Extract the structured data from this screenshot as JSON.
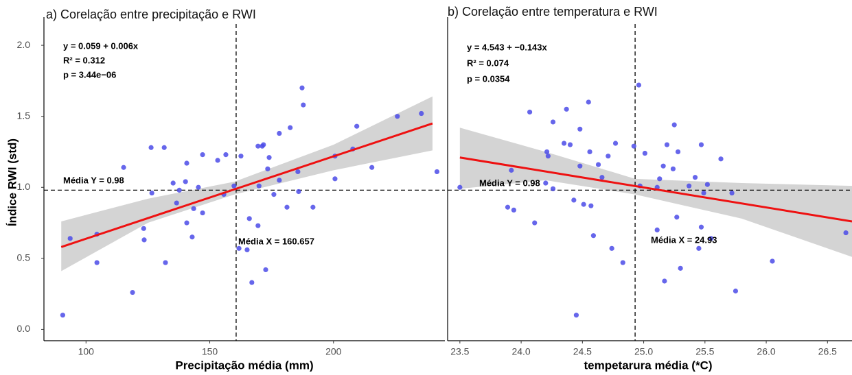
{
  "chart_data": [
    {
      "type": "scatter",
      "title": "a) Corelação entre precipitação e RWI",
      "xlabel": "Precipitação média (mm)",
      "ylabel": "Índice RWI (std)",
      "xlim": [
        83,
        245
      ],
      "ylim": [
        -0.08,
        2.15
      ],
      "xticks": [
        100,
        150,
        200
      ],
      "yticks": [
        {
          "value": 0,
          "label": "0.0"
        },
        0.5,
        {
          "value": 1,
          "label": "1.0"
        },
        1.5,
        {
          "value": 2,
          "label": "2.0"
        }
      ],
      "color": "#4b4be8",
      "fit_color": "#ee1111",
      "band_color": "#d4d4d4",
      "x": [
        90.6,
        93.6,
        104.4,
        104.4,
        115.2,
        118.8,
        123.3,
        123.5,
        126.3,
        126.6,
        131.6,
        132.1,
        135.2,
        136.6,
        137.7,
        140.2,
        140.7,
        140.7,
        142.9,
        143.5,
        145.4,
        147.1,
        147.1,
        153.2,
        156.5,
        155.7,
        159.8,
        162.6,
        161.8,
        165.1,
        166.0,
        167.0,
        169.5,
        169.5,
        171.2,
        171.7,
        172.6,
        173.4,
        174.0,
        175.9,
        178.1,
        178.1,
        181.2,
        182.5,
        185.6,
        185.9,
        187.3,
        187.8,
        191.7,
        200.6,
        200.6,
        207.8,
        209.4,
        215.5,
        225.8,
        235.5,
        241.8,
        169.9
      ],
      "y": [
        0.1,
        0.64,
        0.67,
        0.47,
        1.14,
        0.26,
        0.71,
        0.63,
        1.28,
        0.96,
        1.28,
        0.47,
        1.03,
        0.89,
        0.98,
        1.04,
        1.17,
        0.75,
        0.65,
        0.85,
        1.0,
        0.82,
        1.23,
        1.19,
        1.23,
        0.95,
        1.01,
        1.22,
        0.57,
        0.56,
        0.78,
        0.33,
        1.29,
        0.73,
        1.29,
        1.3,
        0.42,
        1.13,
        1.21,
        0.95,
        1.05,
        1.38,
        0.86,
        1.42,
        1.11,
        0.97,
        1.7,
        1.58,
        0.86,
        1.22,
        1.06,
        1.27,
        1.43,
        1.14,
        1.5,
        1.52,
        1.11,
        1.01
      ],
      "fit_x": [
        90,
        240
      ],
      "fit_y": [
        0.58,
        1.45
      ],
      "band_x": [
        90,
        125,
        160,
        200,
        240
      ],
      "band_lower": [
        0.41,
        0.75,
        0.95,
        1.12,
        1.26
      ],
      "band_upper": [
        0.76,
        0.92,
        1.04,
        1.3,
        1.64
      ],
      "vlines": [
        160.657
      ],
      "hlines": [
        0.98
      ],
      "annotations": [
        "y = 0.059 + 0.006x",
        "R² = 0.312",
        "p = 3.44e−06",
        "Média Y = 0.98",
        "Média X = 160.657"
      ]
    },
    {
      "type": "scatter",
      "title": "b) Corelação entre temperatura e RWI",
      "xlabel": "tempetarura média (*C)",
      "xlim": [
        23.4,
        26.7
      ],
      "ylim": [
        -0.08,
        2.15
      ],
      "xticks": [
        23.5,
        {
          "value": 24,
          "label": "24.0"
        },
        24.5,
        {
          "value": 25,
          "label": "25.0"
        },
        25.5,
        {
          "value": 26,
          "label": "26.0"
        },
        26.5
      ],
      "color": "#4b4be8",
      "fit_color": "#ee1111",
      "band_color": "#d4d4d4",
      "x": [
        23.5,
        23.89,
        23.92,
        23.94,
        24.07,
        24.11,
        24.2,
        24.26,
        24.26,
        24.21,
        24.22,
        24.35,
        24.37,
        24.4,
        24.43,
        24.45,
        24.48,
        24.48,
        24.51,
        24.55,
        24.56,
        24.57,
        24.59,
        24.63,
        24.66,
        24.71,
        24.74,
        24.77,
        24.83,
        24.92,
        24.96,
        24.97,
        25.01,
        25.11,
        25.11,
        25.13,
        25.16,
        25.17,
        25.19,
        25.24,
        25.25,
        25.27,
        25.28,
        25.3,
        25.37,
        25.42,
        25.45,
        25.47,
        25.47,
        25.49,
        25.52,
        25.55,
        25.63,
        25.72,
        25.75,
        26.05,
        26.65
      ],
      "y": [
        1.0,
        0.86,
        1.12,
        0.84,
        1.53,
        0.75,
        1.03,
        1.46,
        0.99,
        1.25,
        1.22,
        1.31,
        1.55,
        1.3,
        0.91,
        0.1,
        1.41,
        1.15,
        0.88,
        1.6,
        1.25,
        0.87,
        0.66,
        1.16,
        1.07,
        1.22,
        0.57,
        1.31,
        0.47,
        1.29,
        1.72,
        1.01,
        1.24,
        1.0,
        0.7,
        1.06,
        1.15,
        0.34,
        1.3,
        1.13,
        1.44,
        0.79,
        1.25,
        0.43,
        1.01,
        1.07,
        0.57,
        0.72,
        1.3,
        0.96,
        1.02,
        0.64,
        1.2,
        0.96,
        0.27,
        0.48,
        0.68
      ],
      "fit_x": [
        23.5,
        26.7
      ],
      "fit_y": [
        1.21,
        0.76
      ],
      "band_x": [
        23.5,
        24.2,
        24.93,
        25.8,
        26.7
      ],
      "band_lower": [
        0.99,
        1.05,
        0.95,
        0.78,
        0.51
      ],
      "band_upper": [
        1.42,
        1.25,
        1.06,
        1.03,
        1.01
      ],
      "vlines": [
        24.93
      ],
      "hlines": [
        0.98
      ],
      "annotations": [
        "y = 4.543 + −0.143x",
        "R² = 0.074",
        "p = 0.0354",
        "Média Y = 0.98",
        "Média X = 24.93"
      ]
    }
  ]
}
